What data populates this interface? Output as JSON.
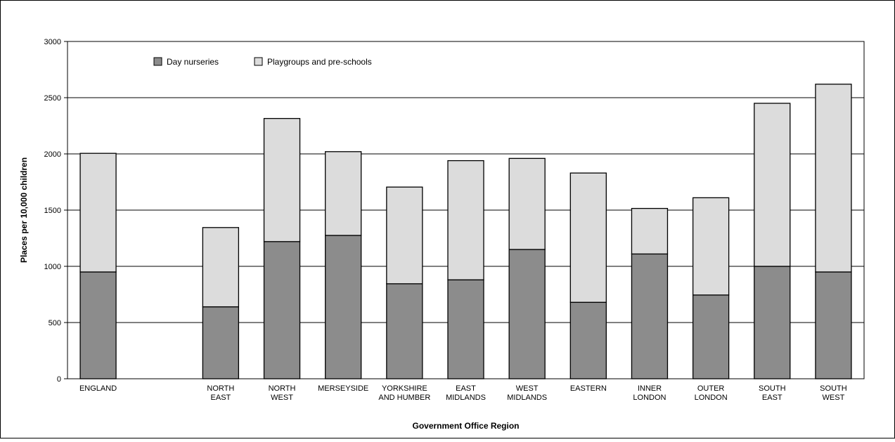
{
  "chart_data": {
    "type": "bar",
    "stacked": true,
    "categories": [
      [
        "ENGLAND"
      ],
      [],
      [
        "NORTH",
        "EAST"
      ],
      [
        "NORTH",
        "WEST"
      ],
      [
        "MERSEYSIDE"
      ],
      [
        "YORKSHIRE",
        "AND HUMBER"
      ],
      [
        "EAST",
        "MIDLANDS"
      ],
      [
        "WEST",
        "MIDLANDS"
      ],
      [
        "EASTERN"
      ],
      [
        "INNER",
        "LONDON"
      ],
      [
        "OUTER",
        "LONDON"
      ],
      [
        "SOUTH",
        "EAST"
      ],
      [
        "SOUTH",
        "WEST"
      ]
    ],
    "series": [
      {
        "name": "Day nurseries",
        "color": "#8c8c8c",
        "values": [
          950,
          null,
          640,
          1220,
          1275,
          845,
          880,
          1150,
          680,
          1110,
          745,
          1000,
          950
        ]
      },
      {
        "name": "Playgroups and pre-schools",
        "color": "#dcdcdc",
        "values": [
          1055,
          null,
          705,
          1095,
          745,
          860,
          1060,
          810,
          1150,
          405,
          865,
          1450,
          1670
        ]
      }
    ],
    "title": "",
    "xlabel": "Government Office Region",
    "ylabel": "Places per 10,000 children",
    "ylim": [
      0,
      3000
    ],
    "yticks": [
      0,
      500,
      1000,
      1500,
      2000,
      2500,
      3000
    ],
    "grid": true,
    "legend": "top-left"
  }
}
